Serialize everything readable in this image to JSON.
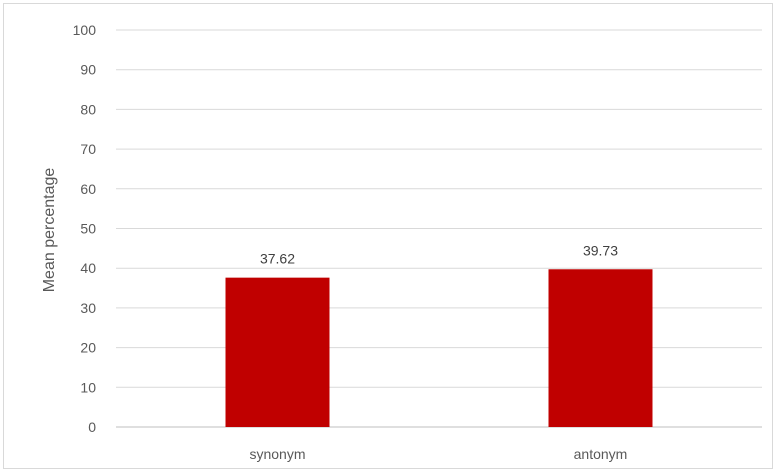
{
  "chart_data": {
    "type": "bar",
    "title": "",
    "xlabel": "",
    "ylabel": "Mean percentage",
    "categories": [
      "synonym",
      "antonym"
    ],
    "values": [
      37.62,
      39.73
    ],
    "data_labels": [
      "37.62",
      "39.73"
    ],
    "ylim": [
      0,
      100
    ],
    "yticks": [
      0,
      10,
      20,
      30,
      40,
      50,
      60,
      70,
      80,
      90,
      100
    ],
    "grid": true,
    "legend": "none",
    "bar_color": "#c00000",
    "gridline_color": "#d9d9d9",
    "axis_line_color": "#bfbfbf"
  }
}
